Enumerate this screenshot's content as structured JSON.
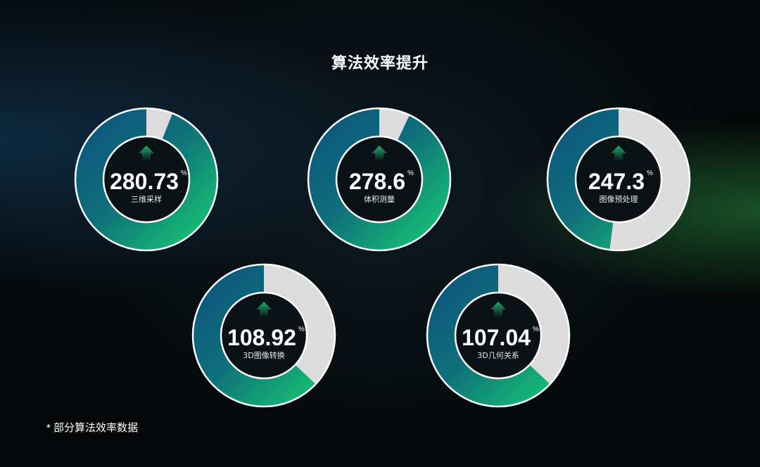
{
  "chart_data": {
    "type": "pie",
    "title": "算法效率提升",
    "unit": "%",
    "items": [
      {
        "value": "280.73",
        "label": "三维采样",
        "fill_fraction": 0.94
      },
      {
        "value": "278.6",
        "label": "体积测量",
        "fill_fraction": 0.93
      },
      {
        "value": "247.3",
        "label": "图像预处理",
        "fill_fraction": 0.48
      },
      {
        "value": "108.92",
        "label": "3D图像转换",
        "fill_fraction": 0.63
      },
      {
        "value": "107.04",
        "label": "3D几何关系",
        "fill_fraction": 0.63
      }
    ],
    "colors": {
      "gradient_start": "#0d5a7e",
      "gradient_end": "#15b874",
      "remainder": "#dcdcdc",
      "arrow": "#1f9e68"
    }
  },
  "footnote": "* 部分算法效率数据"
}
